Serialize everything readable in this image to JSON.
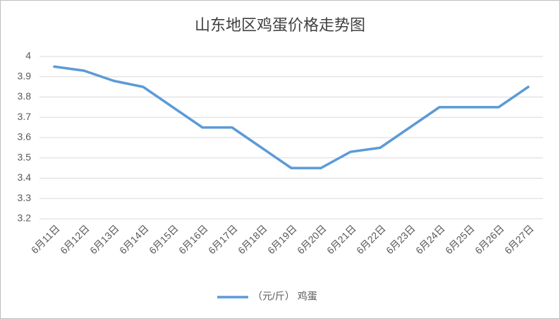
{
  "chart_data": {
    "type": "line",
    "title": "山东地区鸡蛋价格走势图",
    "categories": [
      "6月11日",
      "6月12日",
      "6月13日",
      "6月14日",
      "6月15日",
      "6月16日",
      "6月17日",
      "6月18日",
      "6月19日",
      "6月20日",
      "6月21日",
      "6月22日",
      "6月23日",
      "6月24日",
      "6月25日",
      "6月26日",
      "6月27日"
    ],
    "series": [
      {
        "name": "（元/斤） 鸡蛋",
        "color": "#5b9bd5",
        "values": [
          3.95,
          3.93,
          3.88,
          3.85,
          3.75,
          3.65,
          3.65,
          3.55,
          3.45,
          3.45,
          3.53,
          3.55,
          3.65,
          3.75,
          3.75,
          3.75,
          3.85
        ]
      }
    ],
    "ylim": [
      3.2,
      4
    ],
    "yticks": [
      3.2,
      3.3,
      3.4,
      3.5,
      3.6,
      3.7,
      3.8,
      3.9,
      4
    ],
    "grid": true,
    "legend": "bottom"
  }
}
